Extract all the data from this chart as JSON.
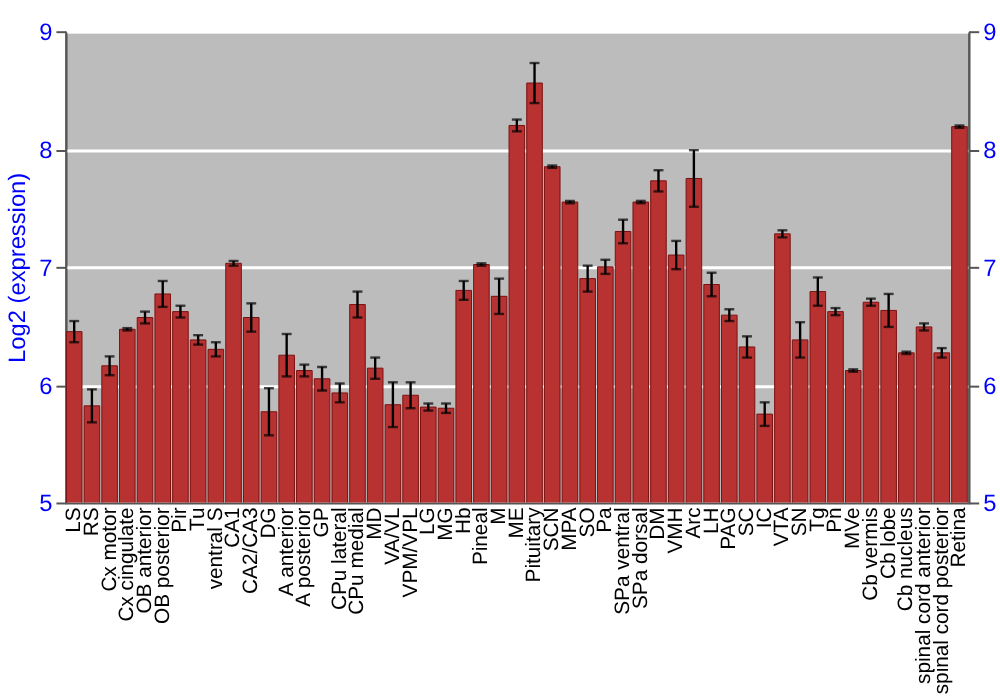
{
  "chart_data": {
    "type": "bar",
    "ylabel": "Log2 (expression)",
    "categories": [
      "LS",
      "RS",
      "Cx motor",
      "Cx cingulate",
      "OB anterior",
      "OB posterior",
      "Pir",
      "Tu",
      "ventral S",
      "CA1",
      "CA2/CA3",
      "DG",
      "A anterior",
      "A posterior",
      "GP",
      "CPu lateral",
      "CPu medial",
      "MD",
      "VA/VL",
      "VPM/VPL",
      "LG",
      "MG",
      "Hb",
      "Pineal",
      "M",
      "ME",
      "Pituitary",
      "SCN",
      "MPA",
      "SO",
      "Pa",
      "SPa ventral",
      "SPa dorsal",
      "DM",
      "VMH",
      "Arc",
      "LH",
      "PAG",
      "SC",
      "IC",
      "VTA",
      "SN",
      "Tg",
      "Pn",
      "MVe",
      "Cb vermis",
      "Cb lobe",
      "Cb nucleus",
      "spinal cord anterior",
      "spinal cord posterior",
      "Retina"
    ],
    "values": [
      6.45,
      5.82,
      6.16,
      6.47,
      6.57,
      6.77,
      6.62,
      6.38,
      6.3,
      7.03,
      6.57,
      5.77,
      6.25,
      6.12,
      6.05,
      5.93,
      6.68,
      6.14,
      5.83,
      5.91,
      5.81,
      5.8,
      6.8,
      7.02,
      6.75,
      8.2,
      8.56,
      7.85,
      7.55,
      6.9,
      7.0,
      7.3,
      7.55,
      7.73,
      7.1,
      7.75,
      6.85,
      6.59,
      6.32,
      5.75,
      7.28,
      6.38,
      6.79,
      6.62,
      6.12,
      6.7,
      6.63,
      6.27,
      6.49,
      6.27,
      8.19
    ],
    "errors": [
      0.09,
      0.14,
      0.08,
      0.01,
      0.05,
      0.11,
      0.05,
      0.04,
      0.06,
      0.02,
      0.12,
      0.2,
      0.18,
      0.05,
      0.1,
      0.08,
      0.11,
      0.09,
      0.19,
      0.11,
      0.03,
      0.04,
      0.08,
      0.01,
      0.15,
      0.05,
      0.17,
      0.01,
      0.01,
      0.11,
      0.06,
      0.1,
      0.01,
      0.09,
      0.12,
      0.24,
      0.1,
      0.05,
      0.09,
      0.1,
      0.03,
      0.15,
      0.12,
      0.03,
      0.01,
      0.03,
      0.14,
      0.01,
      0.03,
      0.04,
      0.01
    ],
    "color": "#b83232",
    "ylim": [
      5,
      9
    ],
    "yticks": [
      5,
      6,
      7,
      8,
      9
    ],
    "grid": "y",
    "y2lim": [
      5,
      9
    ],
    "y2ticks": [
      5,
      6,
      7,
      8,
      9
    ]
  }
}
